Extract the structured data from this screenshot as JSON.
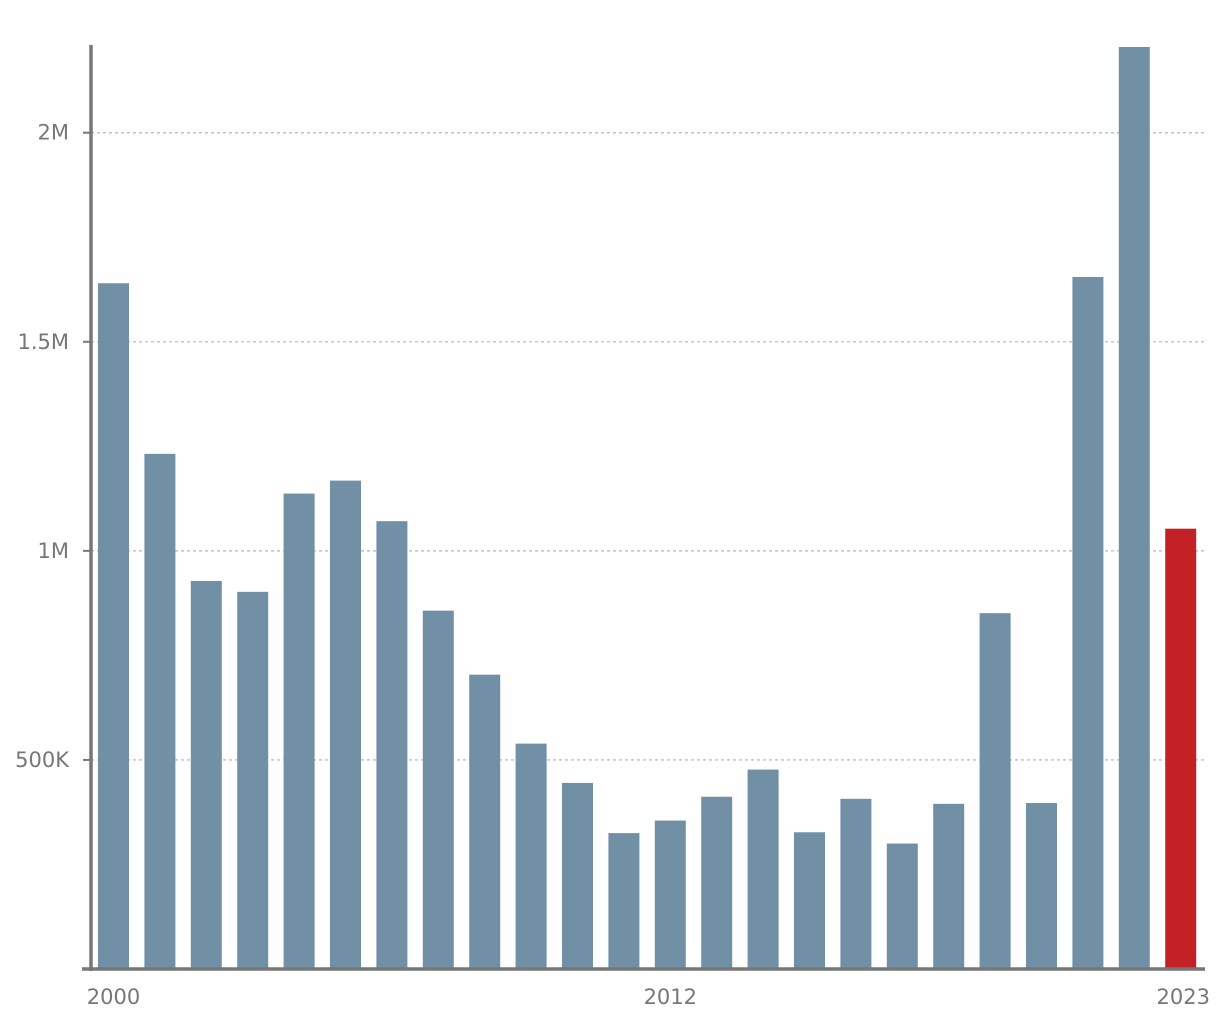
{
  "chart_data": {
    "type": "bar",
    "categories": [
      "2000",
      "2001",
      "2002",
      "2003",
      "2004",
      "2005",
      "2006",
      "2007",
      "2008",
      "2009",
      "2010",
      "2011",
      "2012",
      "2013",
      "2014",
      "2015",
      "2016",
      "2017",
      "2018",
      "2019",
      "2020",
      "2021",
      "2022",
      "2023"
    ],
    "values": [
      1640000,
      1232000,
      928000,
      902000,
      1137000,
      1168000,
      1071000,
      857000,
      704000,
      539000,
      445000,
      325000,
      355000,
      412000,
      477000,
      327000,
      407000,
      300000,
      395000,
      851000,
      397000,
      1655000,
      2205000,
      1053000
    ],
    "ylim": [
      0,
      2205000
    ],
    "y_ticks": [
      {
        "value": 500000,
        "label": "500K"
      },
      {
        "value": 1000000,
        "label": "1M"
      },
      {
        "value": 1500000,
        "label": "1.5M"
      },
      {
        "value": 2000000,
        "label": "2M"
      }
    ],
    "x_tick_labels": [
      {
        "category": "2000",
        "label": "2000"
      },
      {
        "category": "2012",
        "label": "2012"
      },
      {
        "category": "2023",
        "label": "2023"
      }
    ],
    "grid": "horizontal dashed",
    "highlight_category": "2023",
    "colors": {
      "bar": "#7190a6",
      "highlight": "#c42127",
      "axis": "#777777",
      "grid": "#b5b5b5",
      "text": "#777777"
    }
  }
}
